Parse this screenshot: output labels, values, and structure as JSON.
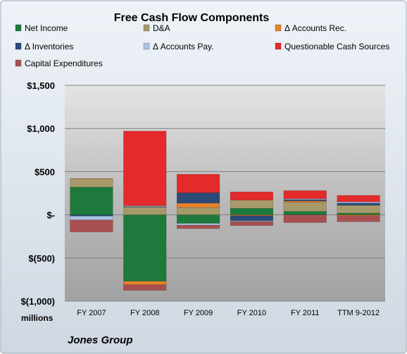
{
  "chart_data": {
    "type": "bar",
    "stacked": true,
    "title": "Free Cash Flow Components",
    "categories": [
      "FY 2007",
      "FY 2008",
      "FY 2009",
      "FY 2010",
      "FY 2011",
      "TTM 9-2012"
    ],
    "ylim": [
      -1000,
      1500
    ],
    "yticks": [
      1500,
      1000,
      500,
      0,
      -500,
      -1000
    ],
    "ytick_labels": [
      "$1,500",
      "$1,000",
      "$500",
      "$-",
      "$(500)",
      "$(1,000)"
    ],
    "ylabel": "millions",
    "footer": "Jones Group",
    "grid": true,
    "legend_position": "top",
    "series": [
      {
        "name": "Net Income",
        "color": "#1d7a3c",
        "values": [
          320,
          -770,
          -100,
          75,
          40,
          20
        ]
      },
      {
        "name": "D&A",
        "color": "#a69a6a",
        "values": [
          95,
          90,
          85,
          95,
          105,
          90
        ]
      },
      {
        "name": "Δ Accounts Rec.",
        "color": "#e8822a",
        "values": [
          5,
          -40,
          50,
          -10,
          15,
          -10
        ]
      },
      {
        "name": "Δ Inventories",
        "color": "#2c4a78",
        "values": [
          -15,
          5,
          120,
          -60,
          15,
          25
        ]
      },
      {
        "name": "Δ Accounts Pay.",
        "color": "#aac4e2",
        "values": [
          -45,
          10,
          -20,
          -10,
          10,
          15
        ]
      },
      {
        "name": "Questionable Cash Sources",
        "color": "#e42a2a",
        "values": [
          0,
          865,
          215,
          95,
          95,
          75
        ]
      },
      {
        "name": "Capital Expenditures",
        "color": "#a85050",
        "values": [
          -140,
          -65,
          -40,
          -45,
          -90,
          -70
        ]
      }
    ]
  }
}
